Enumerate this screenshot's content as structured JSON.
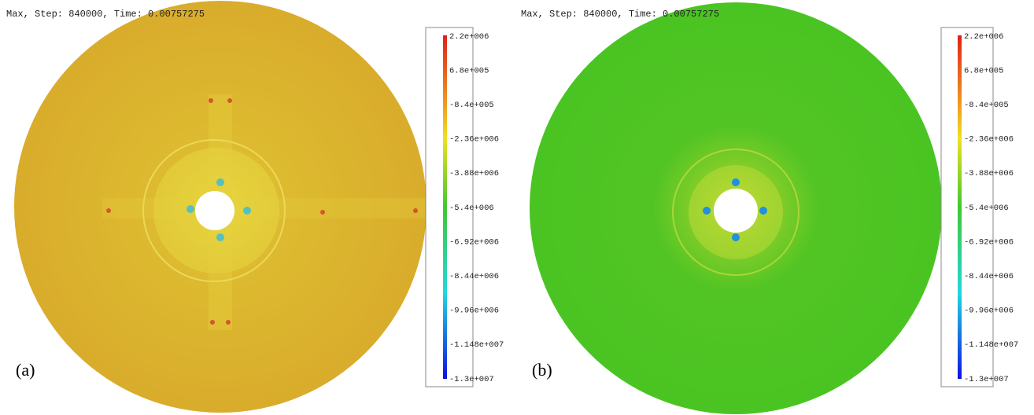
{
  "panels": [
    {
      "header": "Max, Step: 840000, Time: 0.00757275",
      "label": "(a)",
      "colorbar": [
        "2.2e+006",
        "6.8e+005",
        "-8.4e+005",
        "-2.36e+006",
        "-3.88e+006",
        "-5.4e+006",
        "-6.92e+006",
        "-8.44e+006",
        "-9.96e+006",
        "-1.148e+007",
        "-1.3e+007"
      ]
    },
    {
      "header": "Max, Step: 840000, Time: 0.00757275",
      "label": "(b)",
      "colorbar": [
        "2.2e+006",
        "6.8e+005",
        "-8.4e+005",
        "-2.36e+006",
        "-3.88e+006",
        "-5.4e+006",
        "-6.92e+006",
        "-8.44e+006",
        "-9.96e+006",
        "-1.148e+007",
        "-1.3e+007"
      ]
    }
  ]
}
